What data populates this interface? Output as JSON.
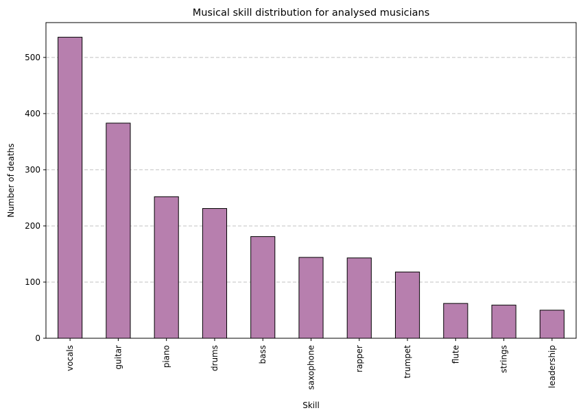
{
  "chart_data": {
    "type": "bar",
    "title": "Musical skill distribution for analysed musicians",
    "xlabel": "Skill",
    "ylabel": "Number of deaths",
    "categories": [
      "vocals",
      "guitar",
      "piano",
      "drums",
      "bass",
      "saxophone",
      "rapper",
      "trumpet",
      "flute",
      "strings",
      "leadership"
    ],
    "values": [
      536,
      383,
      252,
      231,
      181,
      144,
      143,
      118,
      62,
      59,
      50
    ],
    "ylim": [
      0,
      562
    ],
    "yticks": [
      0,
      100,
      200,
      300,
      400,
      500
    ],
    "grid": "y dashed",
    "bar_color": "#b77fae",
    "edge_color": "#000000"
  }
}
